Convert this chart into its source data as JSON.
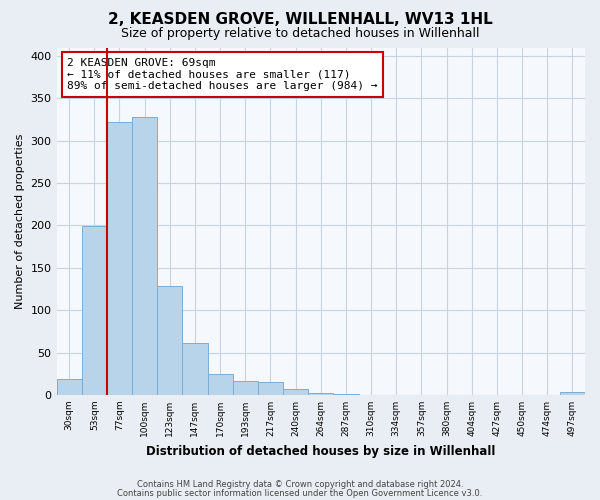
{
  "title": "2, KEASDEN GROVE, WILLENHALL, WV13 1HL",
  "subtitle": "Size of property relative to detached houses in Willenhall",
  "xlabel": "Distribution of detached houses by size in Willenhall",
  "ylabel": "Number of detached properties",
  "bar_labels": [
    "30sqm",
    "53sqm",
    "77sqm",
    "100sqm",
    "123sqm",
    "147sqm",
    "170sqm",
    "193sqm",
    "217sqm",
    "240sqm",
    "264sqm",
    "287sqm",
    "310sqm",
    "334sqm",
    "357sqm",
    "380sqm",
    "404sqm",
    "427sqm",
    "450sqm",
    "474sqm",
    "497sqm"
  ],
  "bar_values": [
    19,
    199,
    322,
    328,
    129,
    61,
    25,
    16,
    15,
    7,
    2,
    1,
    0,
    0,
    0,
    0,
    0,
    0,
    0,
    0,
    3
  ],
  "bar_color": "#b8d4ea",
  "bar_edge_color": "#7badd4",
  "marker_label": "2 KEASDEN GROVE: 69sqm",
  "annotation_line1": "← 11% of detached houses are smaller (117)",
  "annotation_line2": "89% of semi-detached houses are larger (984) →",
  "vline_color": "#cc0000",
  "vline_x_index": 2,
  "ylim": [
    0,
    410
  ],
  "yticks": [
    0,
    50,
    100,
    150,
    200,
    250,
    300,
    350,
    400
  ],
  "footnote1": "Contains HM Land Registry data © Crown copyright and database right 2024.",
  "footnote2": "Contains public sector information licensed under the Open Government Licence v3.0.",
  "background_color": "#e8eef4",
  "plot_bg_color": "#f5f8fc",
  "grid_color": "#c8d4e0"
}
